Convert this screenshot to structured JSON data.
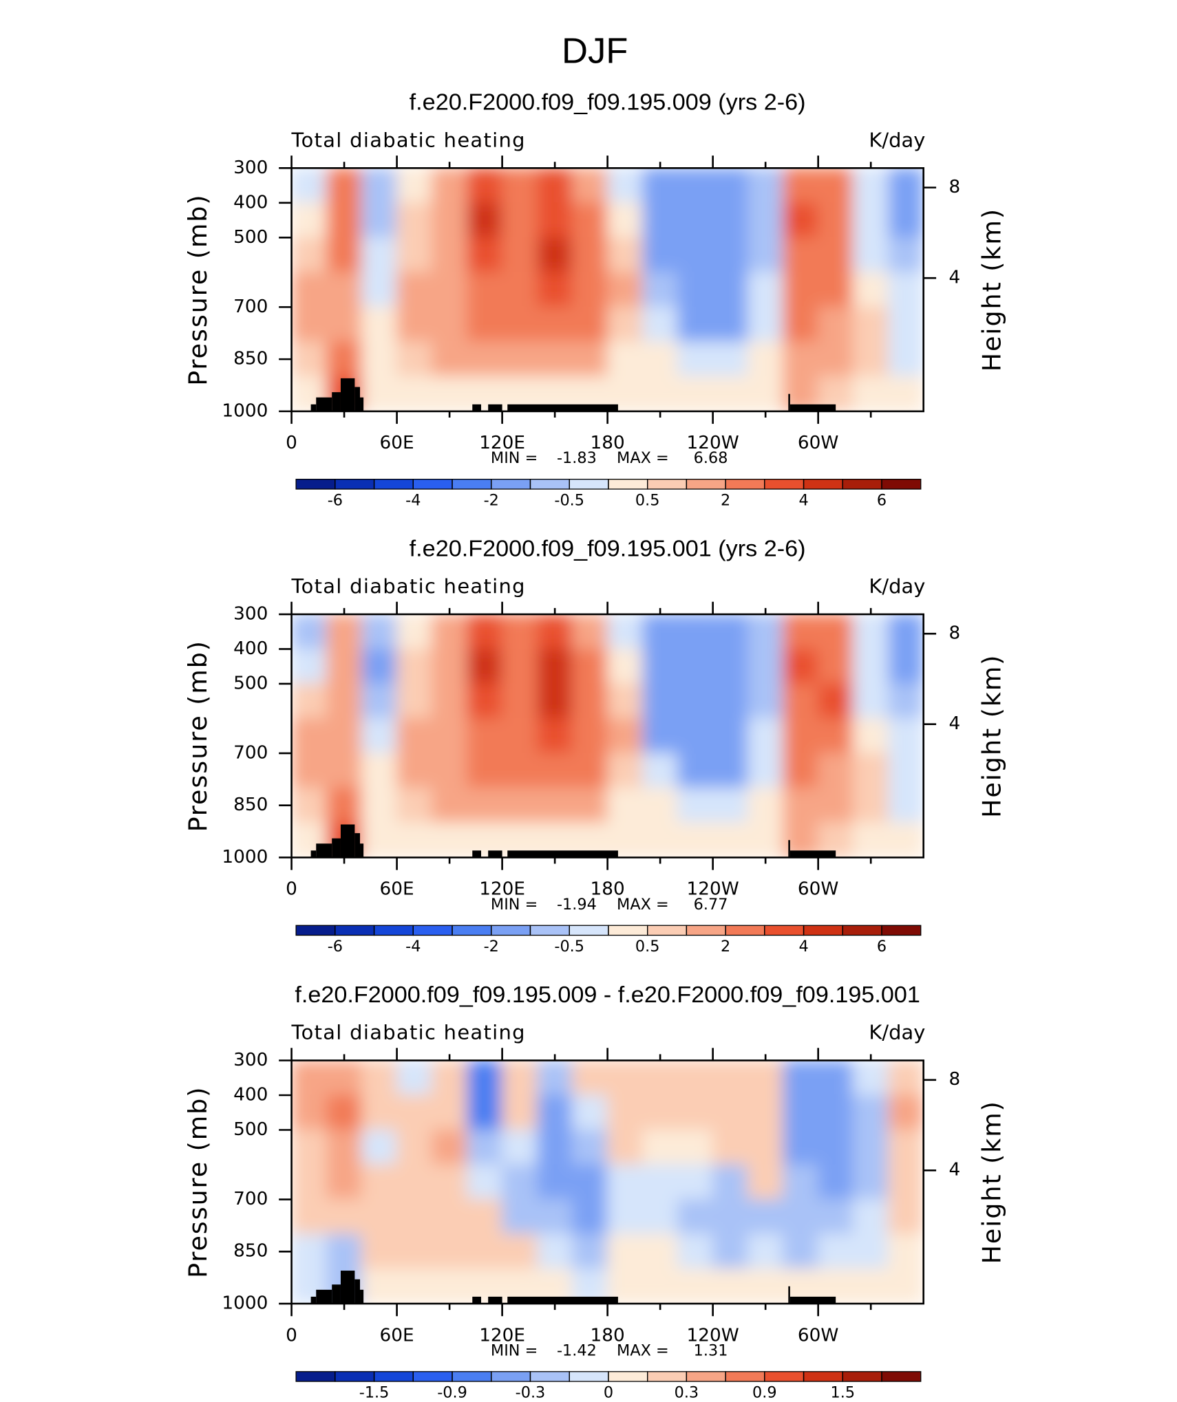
{
  "title": "DJF",
  "terrain": {
    "lon_start": [
      11,
      14,
      23,
      28,
      36,
      39,
      103,
      112,
      123,
      283,
      284
    ],
    "lon_end": [
      14,
      23,
      28,
      36,
      39,
      41,
      108,
      120,
      186,
      284,
      310
    ],
    "top": [
      980,
      960,
      945,
      905,
      930,
      960,
      980,
      980,
      980,
      950,
      980
    ]
  },
  "chart_data": [
    {
      "type": "contour",
      "title": "f.e20.F2000.f09_f09.195.009 (yrs 2-6)",
      "left_label": "Total diabatic heating",
      "right_label": "K/day",
      "ylabel": "Pressure (mb)",
      "y2label": "Height (km)",
      "xlim": [
        0,
        360
      ],
      "xticks": [
        0,
        {
          "value": 60,
          "label": "60E"
        },
        {
          "value": 120,
          "label": "120E"
        },
        180,
        {
          "value": 240,
          "label": "120W"
        },
        {
          "value": 300,
          "label": "60W"
        }
      ],
      "xminorticks": [
        30,
        90,
        150,
        210,
        270,
        330
      ],
      "ylim": [
        1000,
        300
      ],
      "yticks": [
        300,
        400,
        500,
        700,
        850,
        1000
      ],
      "y2ticks": [
        4,
        8
      ],
      "min_text": "MIN =",
      "min": -1.83,
      "max_text": "MAX =",
      "max": 6.68,
      "levels": [
        -6,
        -5,
        -4,
        -3,
        -2,
        -1,
        -0.5,
        0,
        0.5,
        1,
        2,
        3,
        4,
        5,
        6
      ],
      "cbar_ticks": [
        -6,
        -4,
        -2,
        -0.5,
        0.5,
        2,
        4,
        6
      ],
      "colors": [
        "#061d8c",
        "#0a2fb4",
        "#1446d8",
        "#2a5fef",
        "#4a7ef2",
        "#7aa0f4",
        "#a9c2f7",
        "#d6e5fb",
        "#fdebd8",
        "#fbcdb4",
        "#f7a586",
        "#f27a57",
        "#e9502e",
        "#cf3214",
        "#a81e0a",
        "#7f0b04"
      ],
      "x": [
        10,
        30,
        50,
        70,
        90,
        110,
        130,
        150,
        170,
        190,
        210,
        230,
        250,
        270,
        290,
        310,
        330,
        350
      ],
      "y": [
        350,
        450,
        550,
        650,
        750,
        850,
        950
      ],
      "z": [
        [
          -0.3,
          2,
          -1,
          0.3,
          1.5,
          3.5,
          2,
          3,
          1,
          -0.3,
          -1.2,
          -1.5,
          -1.5,
          -1,
          2,
          2,
          -0.5,
          -1.2
        ],
        [
          0.3,
          2,
          -1,
          0.5,
          1.5,
          4,
          2.5,
          3.5,
          2,
          0.3,
          -1.2,
          -1.5,
          -1.5,
          -1,
          3,
          2,
          -0.5,
          -1.2
        ],
        [
          0.7,
          2,
          -0.5,
          0.8,
          1.5,
          3.5,
          2.5,
          4,
          2.5,
          0.7,
          -1.2,
          -1.5,
          -1.5,
          -0.7,
          2.5,
          2.5,
          -0.3,
          -1
        ],
        [
          1.5,
          1.5,
          -0.3,
          1,
          1.5,
          2.5,
          2.5,
          3,
          2.5,
          1.5,
          -1,
          -1.5,
          -1.5,
          -0.5,
          2,
          2,
          0.3,
          -0.5
        ],
        [
          1.5,
          1,
          0.3,
          1,
          1.5,
          2,
          2,
          2,
          2,
          0.7,
          -0.5,
          -1.2,
          -1.2,
          -0.3,
          2,
          1.5,
          0.7,
          -0.3
        ],
        [
          0.7,
          2,
          0.3,
          0.7,
          1,
          1,
          1,
          1,
          1,
          0.3,
          0.1,
          -0.5,
          -0.5,
          0.3,
          1.5,
          1,
          0.5,
          -0.3
        ],
        [
          0.3,
          3,
          0.3,
          0.3,
          0.3,
          0.3,
          0.3,
          0.3,
          0.3,
          0.2,
          0.2,
          0.2,
          0.2,
          0.3,
          1,
          0.7,
          0.3,
          0.2
        ]
      ]
    },
    {
      "type": "contour",
      "title": "f.e20.F2000.f09_f09.195.001 (yrs 2-6)",
      "left_label": "Total diabatic heating",
      "right_label": "K/day",
      "ylabel": "Pressure (mb)",
      "y2label": "Height (km)",
      "xlim": [
        0,
        360
      ],
      "xticks": [
        0,
        {
          "value": 60,
          "label": "60E"
        },
        {
          "value": 120,
          "label": "120E"
        },
        180,
        {
          "value": 240,
          "label": "120W"
        },
        {
          "value": 300,
          "label": "60W"
        }
      ],
      "xminorticks": [
        30,
        90,
        150,
        210,
        270,
        330
      ],
      "ylim": [
        1000,
        300
      ],
      "yticks": [
        300,
        400,
        500,
        700,
        850,
        1000
      ],
      "y2ticks": [
        4,
        8
      ],
      "min_text": "MIN =",
      "min": -1.94,
      "max_text": "MAX =",
      "max": 6.77,
      "levels": [
        -6,
        -5,
        -4,
        -3,
        -2,
        -1,
        -0.5,
        0,
        0.5,
        1,
        2,
        3,
        4,
        5,
        6
      ],
      "cbar_ticks": [
        -6,
        -4,
        -2,
        -0.5,
        0.5,
        2,
        4,
        6
      ],
      "colors": [
        "#061d8c",
        "#0a2fb4",
        "#1446d8",
        "#2a5fef",
        "#4a7ef2",
        "#7aa0f4",
        "#a9c2f7",
        "#d6e5fb",
        "#fdebd8",
        "#fbcdb4",
        "#f7a586",
        "#f27a57",
        "#e9502e",
        "#cf3214",
        "#a81e0a",
        "#7f0b04"
      ],
      "x": [
        10,
        30,
        50,
        70,
        90,
        110,
        130,
        150,
        170,
        190,
        210,
        230,
        250,
        270,
        290,
        310,
        330,
        350
      ],
      "y": [
        350,
        450,
        550,
        650,
        750,
        850,
        950
      ],
      "z": [
        [
          -0.7,
          1.5,
          -1,
          0.3,
          1.5,
          3.5,
          2,
          3,
          1.5,
          -0.3,
          -1.5,
          -1.5,
          -1.5,
          -1,
          2.5,
          2,
          -0.5,
          -1.2
        ],
        [
          -0.5,
          1.5,
          -1.2,
          0.5,
          1.5,
          4,
          2.5,
          4.5,
          2,
          0.3,
          -1.5,
          -1.5,
          -1.5,
          -1,
          3,
          2.5,
          -0.5,
          -1.2
        ],
        [
          0.5,
          1.5,
          -1,
          0.8,
          1.5,
          3.5,
          2.5,
          4,
          2.5,
          0.7,
          -1.5,
          -1.5,
          -1.5,
          -1,
          2.5,
          3,
          -0.3,
          -1
        ],
        [
          1.5,
          1.5,
          -0.5,
          1,
          1.5,
          2.5,
          2.5,
          3,
          2.5,
          1.5,
          -1.2,
          -1.5,
          -1.5,
          -0.5,
          2,
          2,
          0.3,
          -0.5
        ],
        [
          1.5,
          1,
          0.3,
          1,
          1.5,
          2,
          2,
          2,
          2,
          0.7,
          -0.5,
          -1.2,
          -1.2,
          -0.3,
          2,
          1.5,
          0.7,
          -0.3
        ],
        [
          0.7,
          2,
          0.3,
          0.7,
          1,
          1,
          1,
          1,
          1,
          0.3,
          0.1,
          -0.5,
          -0.5,
          0.3,
          1.5,
          1,
          0.5,
          -0.5
        ],
        [
          0.3,
          3,
          0.3,
          0.3,
          0.3,
          0.3,
          0.3,
          0.3,
          0.3,
          0.2,
          0.2,
          0.2,
          0.2,
          0.3,
          1,
          0.7,
          0.3,
          0.2
        ]
      ]
    },
    {
      "type": "contour",
      "title": "f.e20.F2000.f09_f09.195.009 - f.e20.F2000.f09_f09.195.001",
      "left_label": "Total diabatic heating",
      "right_label": "K/day",
      "ylabel": "Pressure (mb)",
      "y2label": "Height (km)",
      "xlim": [
        0,
        360
      ],
      "xticks": [
        0,
        {
          "value": 60,
          "label": "60E"
        },
        {
          "value": 120,
          "label": "120E"
        },
        180,
        {
          "value": 240,
          "label": "120W"
        },
        {
          "value": 300,
          "label": "60W"
        }
      ],
      "xminorticks": [
        30,
        90,
        150,
        210,
        270,
        330
      ],
      "ylim": [
        1000,
        300
      ],
      "yticks": [
        300,
        400,
        500,
        700,
        850,
        1000
      ],
      "y2ticks": [
        4,
        8
      ],
      "min_text": "MIN =",
      "min": -1.42,
      "max_text": "MAX =",
      "max": 1.31,
      "levels": [
        -1.8,
        -1.5,
        -1.2,
        -0.9,
        -0.6,
        -0.3,
        -0.1,
        0,
        0.1,
        0.3,
        0.6,
        0.9,
        1.2,
        1.5,
        1.8
      ],
      "cbar_ticks": [
        -1.5,
        -0.9,
        -0.3,
        0,
        0.3,
        0.9,
        1.5
      ],
      "colors": [
        "#061d8c",
        "#0a2fb4",
        "#1446d8",
        "#2a5fef",
        "#4a7ef2",
        "#7aa0f4",
        "#a9c2f7",
        "#d6e5fb",
        "#fdebd8",
        "#fbcdb4",
        "#f7a586",
        "#f27a57",
        "#e9502e",
        "#cf3214",
        "#a81e0a",
        "#7f0b04"
      ],
      "x": [
        10,
        30,
        50,
        70,
        90,
        110,
        130,
        150,
        170,
        190,
        210,
        230,
        250,
        270,
        290,
        310,
        330,
        350
      ],
      "y": [
        350,
        450,
        550,
        650,
        750,
        850,
        950
      ],
      "z": [
        [
          0.3,
          0.5,
          0.2,
          -0.1,
          0.2,
          -0.9,
          0.2,
          -0.3,
          0.2,
          0.2,
          0.2,
          0.2,
          0.1,
          0.1,
          -0.6,
          -0.4,
          -0.1,
          0.2
        ],
        [
          0.3,
          0.6,
          0.1,
          0.2,
          0.2,
          -0.7,
          0.1,
          -0.4,
          -0.1,
          0.2,
          0.1,
          0.2,
          0.2,
          0.2,
          -0.6,
          -0.6,
          -0.2,
          0.3
        ],
        [
          0.2,
          0.4,
          -0.1,
          0.1,
          0.3,
          -0.3,
          -0.1,
          -0.5,
          -0.3,
          0.1,
          0.05,
          0.05,
          0.1,
          0.1,
          -0.5,
          -0.6,
          -0.3,
          0.2
        ],
        [
          0.2,
          0.3,
          0.1,
          0.2,
          0.2,
          -0.1,
          -0.3,
          -0.4,
          -0.5,
          -0.1,
          -0.1,
          -0.05,
          -0.2,
          0.1,
          -0.3,
          -0.4,
          -0.2,
          0.2
        ],
        [
          0.2,
          0.2,
          0.2,
          0.2,
          0.2,
          0.2,
          -0.2,
          -0.2,
          -0.4,
          -0.1,
          -0.1,
          -0.2,
          -0.3,
          -0.2,
          -0.3,
          -0.2,
          -0.1,
          0.1
        ],
        [
          -0.1,
          -0.3,
          0.1,
          0.1,
          0.1,
          0.2,
          0.1,
          -0.1,
          -0.2,
          0.05,
          0.05,
          -0.1,
          -0.2,
          -0.1,
          -0.2,
          -0.1,
          -0.05,
          0.05
        ],
        [
          -0.1,
          -0.2,
          0.05,
          0.05,
          0.05,
          0.05,
          0.05,
          0.05,
          -0.05,
          0.05,
          0.05,
          0.05,
          0.05,
          0.05,
          0.05,
          0.05,
          0.05,
          0.05
        ]
      ]
    }
  ]
}
